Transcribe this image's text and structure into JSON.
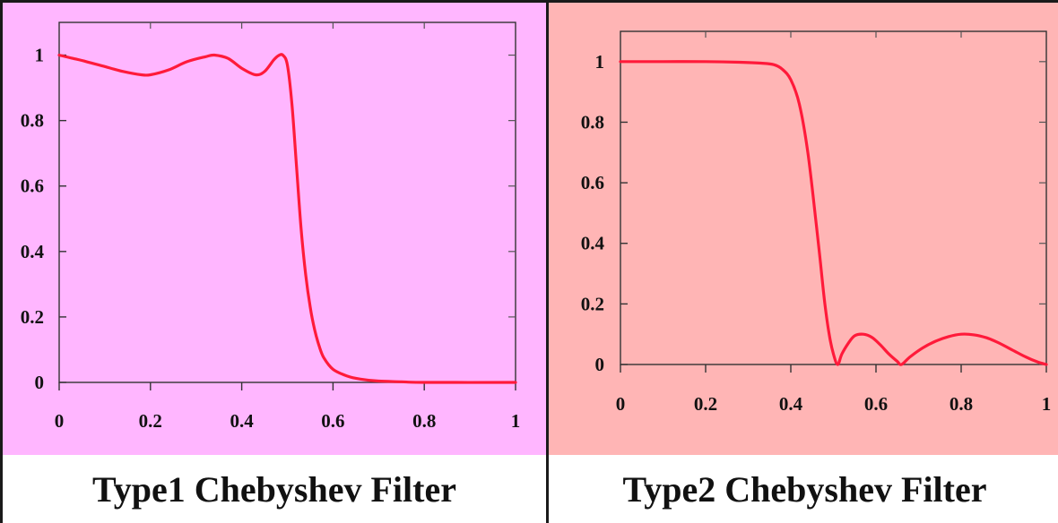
{
  "chart_data": [
    {
      "type": "line",
      "background": "#ffb6ff",
      "line_color": "#ff1a3a",
      "xlim": [
        0,
        1
      ],
      "ylim": [
        0,
        1.1
      ],
      "x_ticks": [
        0,
        0.2,
        0.4,
        0.6,
        0.8,
        1
      ],
      "x_tick_labels": [
        "0",
        "0.2",
        "0.4",
        "0.6",
        "0.8",
        "1"
      ],
      "y_ticks": [
        0,
        0.2,
        0.4,
        0.6,
        0.8,
        1
      ],
      "y_tick_labels": [
        "0",
        "0.2",
        "0.4",
        "0.6",
        "0.8",
        "1"
      ],
      "caption": "Type1 Chebyshev Filter",
      "series": [
        {
          "x": [
            0,
            0.03,
            0.06,
            0.1,
            0.14,
            0.18,
            0.2,
            0.24,
            0.28,
            0.32,
            0.34,
            0.37,
            0.4,
            0.43,
            0.45,
            0.47,
            0.48,
            0.49,
            0.5,
            0.51,
            0.52,
            0.53,
            0.54,
            0.55,
            0.56,
            0.57,
            0.58,
            0.6,
            0.63,
            0.66,
            0.7,
            0.75,
            0.8,
            1
          ],
          "y": [
            1.0,
            0.99,
            0.98,
            0.965,
            0.95,
            0.94,
            0.94,
            0.955,
            0.98,
            0.995,
            1.0,
            0.99,
            0.96,
            0.94,
            0.95,
            0.985,
            0.998,
            1.0,
            0.97,
            0.85,
            0.66,
            0.47,
            0.33,
            0.23,
            0.16,
            0.11,
            0.075,
            0.04,
            0.02,
            0.01,
            0.004,
            0.002,
            0.0,
            0.0
          ]
        }
      ]
    },
    {
      "type": "line",
      "background": "#ffb5b5",
      "line_color": "#ff1a3a",
      "xlim": [
        0,
        1
      ],
      "ylim": [
        0,
        1.1
      ],
      "x_ticks": [
        0,
        0.2,
        0.4,
        0.6,
        0.8,
        1
      ],
      "x_tick_labels": [
        "0",
        "0.2",
        "0.4",
        "0.6",
        "0.8",
        "1"
      ],
      "y_ticks": [
        0,
        0.2,
        0.4,
        0.6,
        0.8,
        1
      ],
      "y_tick_labels": [
        "0",
        "0.2",
        "0.4",
        "0.6",
        "0.8",
        "1"
      ],
      "caption": "Type2 Chebyshev Filter",
      "series": [
        {
          "x": [
            0,
            0.1,
            0.2,
            0.28,
            0.33,
            0.36,
            0.38,
            0.4,
            0.42,
            0.44,
            0.46,
            0.47,
            0.48,
            0.49,
            0.5,
            0.51,
            0.52,
            0.535,
            0.55,
            0.57,
            0.59,
            0.61,
            0.63,
            0.65,
            0.66,
            0.68,
            0.71,
            0.74,
            0.77,
            0.8,
            0.83,
            0.86,
            0.89,
            0.92,
            0.95,
            0.98,
            1
          ],
          "y": [
            1.0,
            1.0,
            1.0,
            0.998,
            0.995,
            0.99,
            0.975,
            0.94,
            0.86,
            0.7,
            0.46,
            0.33,
            0.2,
            0.1,
            0.035,
            0.0,
            0.035,
            0.07,
            0.095,
            0.1,
            0.09,
            0.065,
            0.035,
            0.01,
            0.0,
            0.025,
            0.055,
            0.077,
            0.092,
            0.1,
            0.098,
            0.088,
            0.07,
            0.048,
            0.026,
            0.008,
            0.0
          ]
        }
      ]
    }
  ]
}
